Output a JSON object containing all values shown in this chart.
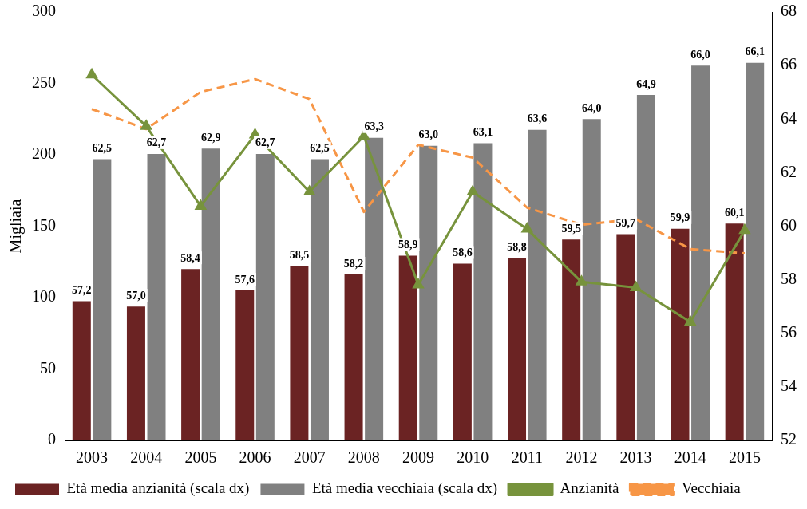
{
  "chart_data": {
    "type": "bar",
    "ylabel": "Migliaia",
    "categories": [
      "2003",
      "2004",
      "2005",
      "2006",
      "2007",
      "2008",
      "2009",
      "2010",
      "2011",
      "2012",
      "2013",
      "2014",
      "2015"
    ],
    "series": [
      {
        "name": "Età media anzianità (scala dx)",
        "axis": "y2",
        "color": "#6b2323",
        "values": [
          57.2,
          57.0,
          58.4,
          57.6,
          58.5,
          58.2,
          58.9,
          58.6,
          58.8,
          59.5,
          59.7,
          59.9,
          60.1
        ],
        "value_labels": [
          "57,2",
          "57,0",
          "58,4",
          "57,6",
          "58,5",
          "58,2",
          "58,9",
          "58,6",
          "58,8",
          "59,5",
          "59,7",
          "59,9",
          "60,1"
        ]
      },
      {
        "name": "Età media vecchiaia (scala dx)",
        "axis": "y2",
        "color": "#808080",
        "values": [
          62.5,
          62.7,
          62.9,
          62.7,
          62.5,
          63.3,
          63.0,
          63.1,
          63.6,
          64.0,
          64.9,
          66.0,
          66.1
        ],
        "value_labels": [
          "62,5",
          "62,7",
          "62,9",
          "62,7",
          "62,5",
          "63,3",
          "63,0",
          "63,1",
          "63,6",
          "64,0",
          "64,9",
          "66,0",
          "66,1"
        ]
      },
      {
        "name": "Anzianità",
        "type": "line",
        "color": "#77933c",
        "marker": "triangle",
        "line_style": "solid",
        "values": [
          256,
          220,
          164,
          214,
          174,
          213,
          109,
          174,
          148,
          111,
          107,
          83,
          147
        ]
      },
      {
        "name": "Vecchiaia",
        "type": "line",
        "color": "#f79646",
        "marker": "none",
        "line_style": "dashed",
        "values": [
          232,
          218,
          244,
          253,
          239,
          160,
          207,
          198,
          163,
          151,
          155,
          134,
          131
        ]
      }
    ],
    "ylim": [
      0,
      300
    ],
    "yticks": [
      0,
      50,
      100,
      150,
      200,
      250,
      300
    ],
    "y2lim": [
      52,
      68
    ],
    "y2ticks": [
      52,
      54,
      56,
      58,
      60,
      62,
      64,
      66,
      68
    ],
    "grid": false,
    "legend": "bottom"
  }
}
